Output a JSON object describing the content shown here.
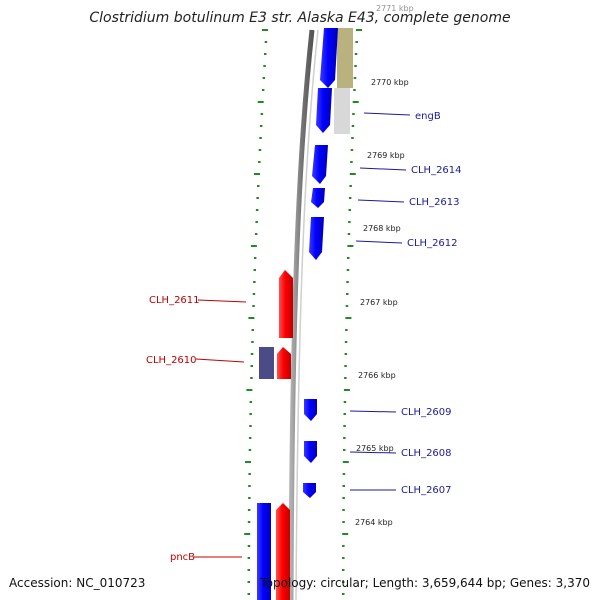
{
  "title": "Clostridium botulinum E3 str. Alaska E43, complete genome",
  "footer": {
    "accession": "Accession: NC_010723",
    "topology": "Topology: circular; Length: 3,659,644 bp; Genes: 3,370"
  },
  "colors": {
    "forward_gene": "#0000ff",
    "reverse_gene": "#ff0000",
    "other_feature": "#4b4b88",
    "cds_track": "#b9b27f",
    "cds_track_light": "#d8d8d8",
    "backbone": "#808080",
    "ticks": "#228b22",
    "label_blue": "#1a1aa0",
    "label_red": "#c00000"
  },
  "kbp_markers": [
    "2771 kbp",
    "2770 kbp",
    "2769 kbp",
    "2768 kbp",
    "2767 kbp",
    "2766 kbp",
    "2765 kbp",
    "2764 kbp"
  ],
  "gene_labels": {
    "engB": "engB",
    "clh2614": "CLH_2614",
    "clh2613": "CLH_2613",
    "clh2612": "CLH_2612",
    "clh2611": "CLH_2611",
    "clh2610": "CLH_2610",
    "clh2609": "CLH_2609",
    "clh2608": "CLH_2608",
    "clh2607": "CLH_2607",
    "pncB": "pncB"
  }
}
